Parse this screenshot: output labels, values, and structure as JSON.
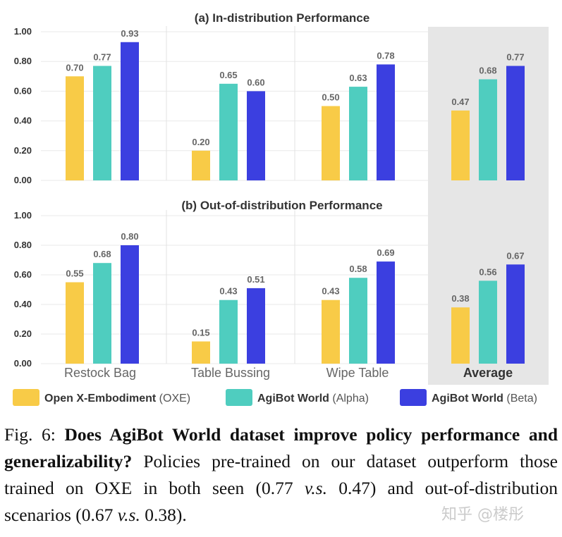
{
  "chart_data": {
    "type": "bar",
    "categories": [
      "Restock Bag",
      "Table Bussing",
      "Wipe Table",
      "Average"
    ],
    "legend": [
      {
        "name": "Open X-Embodiment",
        "suffix": "(OXE)",
        "color": "#F8CB47"
      },
      {
        "name": "AgiBot World",
        "suffix": "(Alpha)",
        "color": "#4FCDBF"
      },
      {
        "name": "AgiBot World",
        "suffix": "(Beta)",
        "color": "#3B3FE0"
      }
    ],
    "ylim": [
      0,
      1
    ],
    "yticks": [
      "1.00",
      "0.80",
      "0.60",
      "0.40",
      "0.20",
      "0.00"
    ],
    "panels": [
      {
        "title": "(a) In-distribution Performance",
        "series": [
          {
            "name": "Open X-Embodiment (OXE)",
            "values": [
              0.7,
              0.2,
              0.5,
              0.47
            ],
            "labels": [
              "0.70",
              "0.20",
              "0.50",
              "0.47"
            ]
          },
          {
            "name": "AgiBot World (Alpha)",
            "values": [
              0.77,
              0.65,
              0.63,
              0.68
            ],
            "labels": [
              "0.77",
              "0.65",
              "0.63",
              "0.68"
            ]
          },
          {
            "name": "AgiBot World (Beta)",
            "values": [
              0.93,
              0.6,
              0.78,
              0.77
            ],
            "labels": [
              "0.93",
              "0.60",
              "0.78",
              "0.77"
            ]
          }
        ]
      },
      {
        "title": "(b) Out-of-distribution Performance",
        "series": [
          {
            "name": "Open X-Embodiment (OXE)",
            "values": [
              0.55,
              0.15,
              0.43,
              0.38
            ],
            "labels": [
              "0.55",
              "0.15",
              "0.43",
              "0.38"
            ]
          },
          {
            "name": "AgiBot World (Alpha)",
            "values": [
              0.68,
              0.43,
              0.58,
              0.56
            ],
            "labels": [
              "0.68",
              "0.43",
              "0.58",
              "0.56"
            ]
          },
          {
            "name": "AgiBot World (Beta)",
            "values": [
              0.8,
              0.51,
              0.69,
              0.67
            ],
            "labels": [
              "0.80",
              "0.51",
              "0.69",
              "0.67"
            ]
          }
        ]
      }
    ],
    "highlight_category": "Average",
    "grid": true
  },
  "caption": {
    "prefix": "Fig. 6: ",
    "bold": "Does AgiBot World dataset improve policy performance and generalizability?",
    "text1": " Policies pre-trained on our dataset outperform those trained on OXE in both seen (0.77 ",
    "vs1": "v.s.",
    "text2": " 0.47) and out-of-distribution scenarios (0.67 ",
    "vs2": "v.s.",
    "text3": " 0.38)."
  },
  "watermark": "知乎 @楼彤"
}
